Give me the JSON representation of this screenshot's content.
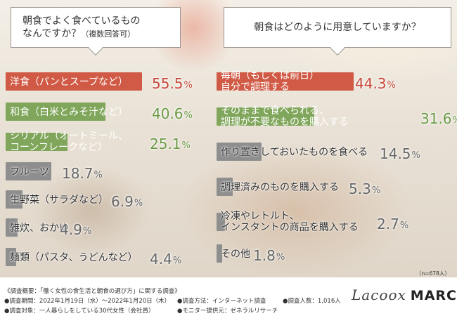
{
  "colors": {
    "red": "#d05a45",
    "green": "#7fa65a",
    "gray": "#8e8e8e",
    "redText": "#c8483a",
    "greenText": "#6a9a45",
    "grayText": "#666666"
  },
  "chart_data": [
    {
      "type": "bar",
      "title": "朝食でよく食べているものなんですか？（複数回答可）",
      "categories": [
        "洋食（パンとスープなど）",
        "和食（白米とみそ汁など）",
        "シリアル（オートミール、コーンフレークなど）",
        "フルーツ",
        "生野菜（サラダなど）",
        "雑炊、おかゆ",
        "麺類（パスタ、うどんなど）"
      ],
      "values": [
        55.5,
        40.6,
        25.1,
        18.7,
        6.9,
        4.9,
        4.4
      ],
      "bar_colors": [
        "red",
        "green",
        "green",
        "gray",
        "gray",
        "gray",
        "gray"
      ],
      "value_unit": "%"
    },
    {
      "type": "bar",
      "title": "朝食はどのように用意していますか？",
      "categories": [
        "毎朝（もしくは前日）自分で調理する",
        "そのままで食べられる、調理が不要なものを購入する",
        "作り置きしておいたものを食べる",
        "調理済みのものを購入する",
        "冷凍やレトルト、インスタントの商品を購入する",
        "その他"
      ],
      "values": [
        44.3,
        31.6,
        14.5,
        5.3,
        2.7,
        1.8
      ],
      "bar_colors": [
        "red",
        "green",
        "gray",
        "gray",
        "gray",
        "gray"
      ],
      "value_unit": "%",
      "note": "（n=678人）"
    }
  ],
  "left": {
    "title_line1": "朝食でよく食べているもの",
    "title_line2": "なんですか？",
    "title_sub": "（複数回答可）",
    "labels": [
      [
        "洋食（パンとスープなど）"
      ],
      [
        "和食（白米とみそ汁など）"
      ],
      [
        "シリアル（オートミール、",
        "コーンフレークなど）"
      ],
      [
        "フルーツ"
      ],
      [
        "生野菜（サラダなど）"
      ],
      [
        "雑炊、おかゆ"
      ],
      [
        "麺類（パスタ、うどんなど）"
      ]
    ],
    "pct": [
      "55.5",
      "40.6",
      "25.1",
      "18.7",
      "6.9",
      "4.9",
      "4.4"
    ]
  },
  "right": {
    "title": "朝食はどのように用意していますか？",
    "labels": [
      [
        "毎朝（もしくは前日）",
        "自分で調理する"
      ],
      [
        "そのままで食べられる、",
        "調理が不要なものを購入する"
      ],
      [
        "作り置きしておいたものを食べる"
      ],
      [
        "調理済みのものを購入する"
      ],
      [
        "冷凍やレトルト、",
        "インスタントの商品を購入する"
      ],
      [
        "その他"
      ]
    ],
    "pct": [
      "44.3",
      "31.6",
      "14.5",
      "5.3",
      "2.7",
      "1.8"
    ],
    "note": "（n=678人）"
  },
  "unit": "%",
  "footer": {
    "survey": "《調査概要：「働く女性の食生活と朝食の選び方」に関する調査》",
    "period": "●調査期間：2022年1月19日（水）〜2022年1月20日（木）",
    "method": "●調査方法：インターネット調査",
    "count": "●調査人数：1,016人",
    "target": "●調査対象：一人暮らしをしている30代女性（会社員）",
    "provider": "●モニター提供元：ゼネラルリサーチ"
  },
  "brand": {
    "script": "Lacoox",
    "main": "MARCHE"
  }
}
